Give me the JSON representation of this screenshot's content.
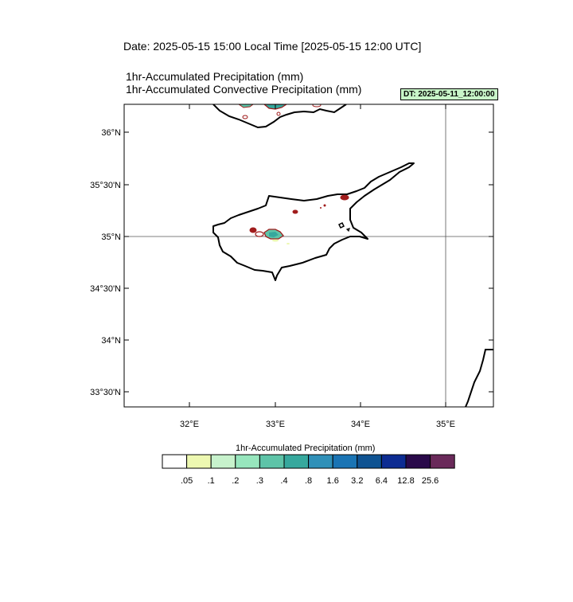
{
  "header": {
    "date_line": "Date: 2025-05-15  15:00 Local Time [2025-05-15  12:00 UTC]",
    "subtitle_1": "1hr-Accumulated Precipitation   (mm)",
    "subtitle_2": "1hr-Accumulated Convective Precipitation   (mm)",
    "dt_badge": "DT: 2025-05-11_12:00:00",
    "dt_badge_color": "#c8f5c8"
  },
  "map": {
    "region": "Cyprus",
    "lon_ticks": [
      "32°E",
      "33°E",
      "34°E",
      "35°E"
    ],
    "lat_ticks": [
      "36°N",
      "35°30'N",
      "35°N",
      "34°30'N",
      "34°N",
      "33°30'N"
    ],
    "gridlines": [
      "35°N",
      "35°E"
    ],
    "coast_color": "#000000",
    "convective_contour_color": "#a01c1c"
  },
  "colorbar": {
    "title": "1hr-Accumulated Precipitation  (mm)",
    "colors": [
      "#ffffff",
      "#edf8b1",
      "#c7f2cc",
      "#97e6bd",
      "#5ec4a8",
      "#36a89d",
      "#3090b8",
      "#1a74b4",
      "#0f5392",
      "#0d2c92",
      "#2a0a4a",
      "#6a2a5a"
    ],
    "labels": [
      ".05",
      ".1",
      ".2",
      ".3",
      ".4",
      ".8",
      "1.6",
      "3.2",
      "6.4",
      "12.8",
      "25.6"
    ]
  }
}
